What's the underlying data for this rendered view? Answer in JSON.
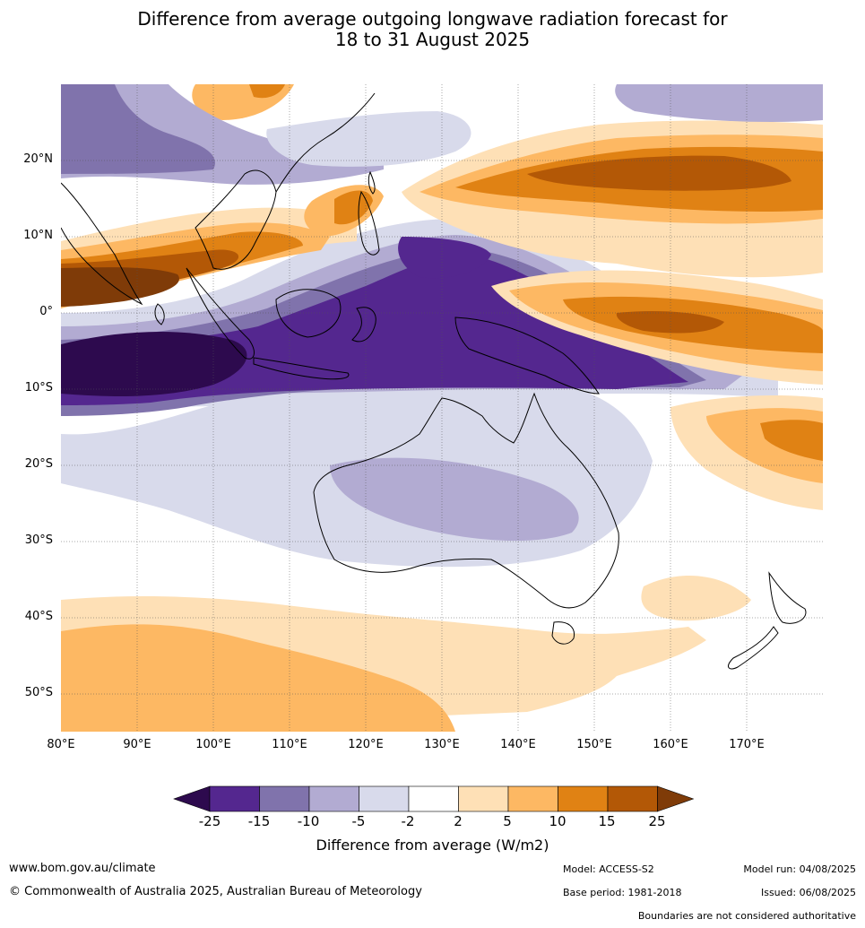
{
  "title": {
    "line1": "Difference from average outgoing longwave radiation forecast for",
    "line2": "18 to 31 August 2025"
  },
  "map": {
    "lat_labels": [
      "20°N",
      "10°N",
      "0°",
      "10°S",
      "20°S",
      "30°S",
      "40°S",
      "50°S"
    ],
    "lon_labels": [
      "80°E",
      "90°E",
      "100°E",
      "110°E",
      "120°E",
      "130°E",
      "140°E",
      "150°E",
      "160°E",
      "170°E"
    ],
    "extent": {
      "lon_min": 80,
      "lon_max": 180,
      "lat_min": -55,
      "lat_max": 30
    }
  },
  "legend": {
    "ticks": [
      "-25",
      "-15",
      "-10",
      "-5",
      "-2",
      "2",
      "5",
      "10",
      "15",
      "25"
    ],
    "label": "Difference from average (W/m2)",
    "colors": {
      "lt_-25": "#2d0a4e",
      "-25_-15": "#54278f",
      "-15_-10": "#8073ac",
      "-10_-5": "#b2abd2",
      "-5_-2": "#d8daeb",
      "-2_2": "#ffffff",
      "2_5": "#fee0b6",
      "5_10": "#fdb863",
      "10_15": "#e08214",
      "15_25": "#b35806",
      "gt_25": "#7f3b08"
    }
  },
  "footer": {
    "website": "www.bom.gov.au/climate",
    "copyright": "© Commonwealth of Australia 2025, Australian Bureau of Meteorology",
    "model": "Model: ACCESS-S2",
    "base_period": "Base period: 1981-2018",
    "model_run": "Model run: 04/08/2025",
    "issued": "Issued: 06/08/2025",
    "disclaimer": "Boundaries are not considered authoritative"
  }
}
